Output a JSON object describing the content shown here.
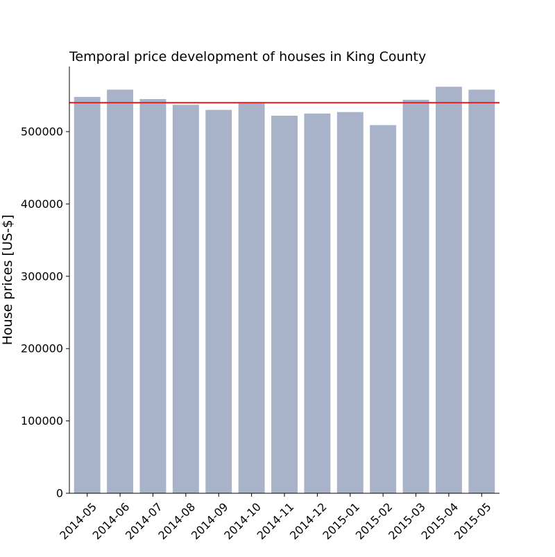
{
  "chart_data": {
    "type": "bar",
    "title": "Temporal price development of houses in King County",
    "xlabel": "",
    "ylabel": "House prices [US-$]",
    "categories": [
      "2014-05",
      "2014-06",
      "2014-07",
      "2014-08",
      "2014-09",
      "2014-10",
      "2014-11",
      "2014-12",
      "2015-01",
      "2015-02",
      "2015-03",
      "2015-04",
      "2015-05"
    ],
    "values": [
      548000,
      558000,
      545000,
      537000,
      530000,
      540000,
      522000,
      525000,
      527000,
      509000,
      544000,
      562000,
      558000
    ],
    "ylim": [
      0,
      590000
    ],
    "yticks": [
      0,
      100000,
      200000,
      300000,
      400000,
      500000
    ],
    "ytick_labels": [
      "0",
      "100000",
      "200000",
      "300000",
      "400000",
      "500000"
    ],
    "reference_line": {
      "value": 540000,
      "color": "#e41a1c"
    },
    "bar_color": "#a8b2c8",
    "grid": false,
    "legend": "none"
  }
}
